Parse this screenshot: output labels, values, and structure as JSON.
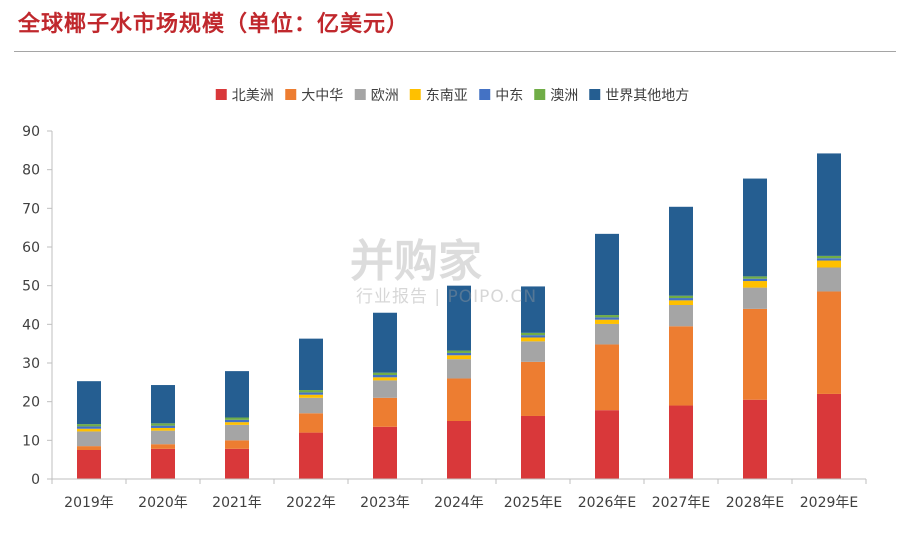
{
  "header": {
    "title": "全球椰子水市场规模（单位：亿美元）"
  },
  "watermark": {
    "brand": "并购家",
    "sub": "行业报告 | POIPO.CN"
  },
  "chart_data": {
    "type": "bar",
    "stacked": true,
    "title": "",
    "xlabel": "",
    "ylabel": "",
    "ylim": [
      0,
      90
    ],
    "yticks": [
      0,
      10,
      20,
      30,
      40,
      50,
      60,
      70,
      80,
      90
    ],
    "grid": false,
    "legend": "top",
    "categories": [
      "2019年",
      "2020年",
      "2021年",
      "2022年",
      "2023年",
      "2024年",
      "2025年E",
      "2026年E",
      "2027年E",
      "2028年E",
      "2029年E"
    ],
    "series": [
      {
        "name": "北美洲",
        "color": "#d9383a",
        "values": [
          7.5,
          7.8,
          7.8,
          12.0,
          13.5,
          15.0,
          16.3,
          17.8,
          19.0,
          20.5,
          22.0
        ]
      },
      {
        "name": "大中华",
        "color": "#ed7d31",
        "values": [
          1.0,
          1.2,
          2.2,
          5.0,
          7.5,
          11.0,
          14.0,
          17.0,
          20.5,
          23.5,
          26.5
        ]
      },
      {
        "name": "欧洲",
        "color": "#a5a5a5",
        "values": [
          3.8,
          3.5,
          4.0,
          4.0,
          4.5,
          5.0,
          5.3,
          5.3,
          5.5,
          5.5,
          6.2
        ]
      },
      {
        "name": "东南亚",
        "color": "#ffc000",
        "values": [
          0.7,
          0.7,
          0.7,
          0.8,
          0.8,
          1.0,
          1.0,
          1.1,
          1.2,
          1.7,
          1.8
        ]
      },
      {
        "name": "中东",
        "color": "#4472c4",
        "values": [
          0.6,
          0.6,
          0.6,
          0.6,
          0.6,
          0.6,
          0.6,
          0.6,
          0.6,
          0.6,
          0.6
        ]
      },
      {
        "name": "澳洲",
        "color": "#70ad47",
        "values": [
          0.6,
          0.6,
          0.6,
          0.6,
          0.6,
          0.6,
          0.6,
          0.6,
          0.6,
          0.6,
          0.6
        ]
      },
      {
        "name": "世界其他地方",
        "color": "#255e91",
        "values": [
          11.1,
          9.9,
          12.0,
          13.3,
          15.5,
          16.8,
          12.0,
          21.0,
          23.0,
          25.3,
          26.5
        ]
      }
    ]
  }
}
